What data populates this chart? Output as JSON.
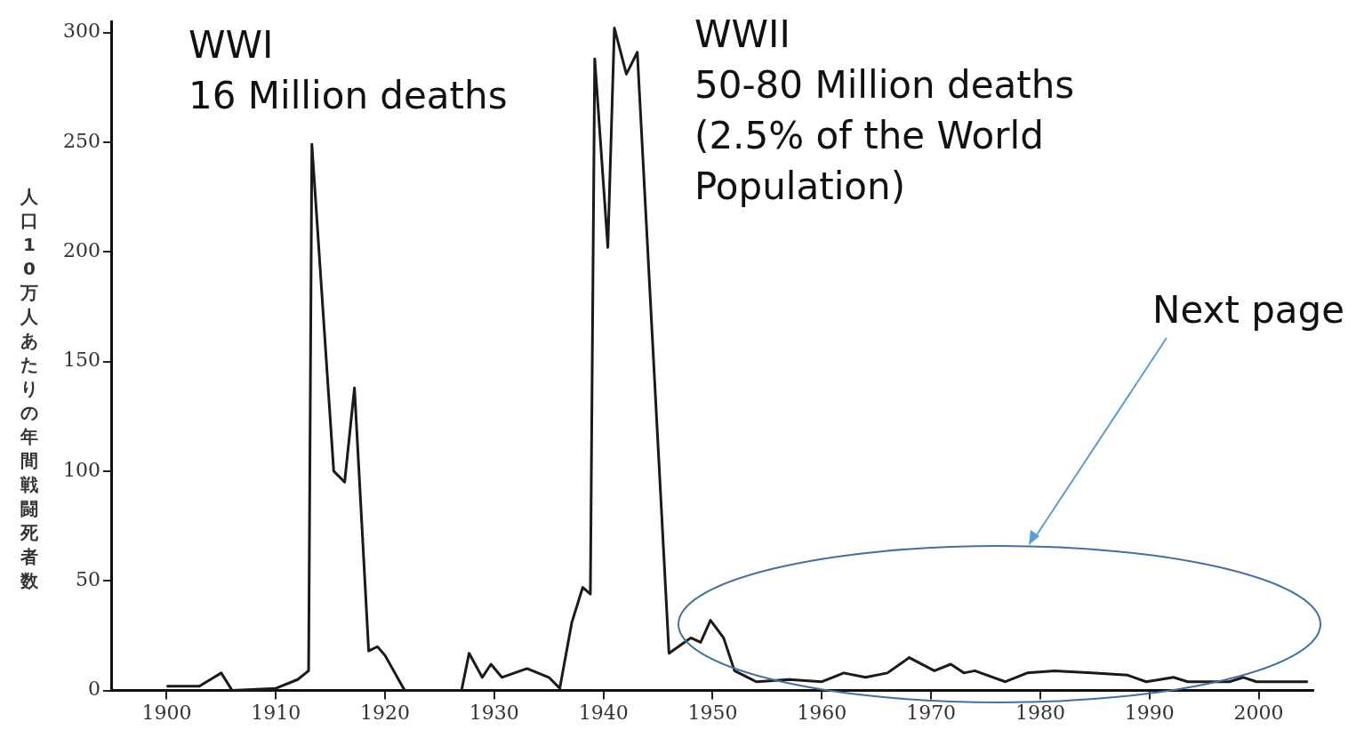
{
  "chart_data": {
    "type": "line",
    "ylabel": "人口10万人あたりの年間戦闘死者数",
    "annotations": [
      "WWI\n16 Million deaths",
      "WWII\n50-80 Million deaths\n(2.5% of the World\nPopulation)",
      "Next page"
    ],
    "series": [
      {
        "color": "#1a1a1a",
        "x": [
          1900,
          1903,
          1905,
          1906,
          1910,
          1912,
          1913,
          1913.3,
          1915.3,
          1916.3,
          1917.2,
          1918.5,
          1919.3,
          1920,
          1921.8,
          1927,
          1927.7,
          1928.9,
          1929.7,
          1930.7,
          1933,
          1935,
          1936,
          1937.1,
          1938.1,
          1938.8,
          1939.2,
          1940.4,
          1941,
          1942.1,
          1943.1,
          1946,
          1948,
          1948.9,
          1949.8,
          1951,
          1952,
          1954,
          1957,
          1960,
          1962,
          1964,
          1966,
          1968,
          1970.3,
          1971.8,
          1973,
          1974,
          1976.8,
          1978.8,
          1981.3,
          1984.7,
          1988,
          1989.7,
          1992.2,
          1993.5,
          1997.3,
          1998.6,
          1999.8,
          2004.5
        ],
        "values": [
          2,
          2,
          8,
          0,
          1,
          5,
          9,
          249,
          100,
          95,
          138,
          18,
          20,
          16,
          0,
          0,
          17,
          6,
          12,
          6,
          10,
          6,
          1,
          31,
          47,
          44,
          288,
          202,
          302,
          281,
          291,
          17,
          24,
          22,
          32,
          24,
          9,
          4,
          5,
          4,
          8,
          6,
          8,
          15,
          9,
          12,
          8,
          9,
          4,
          8,
          9,
          8,
          7,
          4,
          6,
          4,
          4,
          6,
          4,
          4
        ]
      }
    ],
    "xlim": [
      1895,
      2005
    ],
    "xticks": [
      1900,
      1910,
      1920,
      1930,
      1940,
      1950,
      1960,
      1970,
      1980,
      1990,
      2000
    ],
    "ylim": [
      0,
      305
    ],
    "yticks": [
      0,
      50,
      100,
      150,
      200,
      250,
      300
    ],
    "grid": false,
    "legend": false,
    "marker": "none",
    "line_style": "solid"
  }
}
